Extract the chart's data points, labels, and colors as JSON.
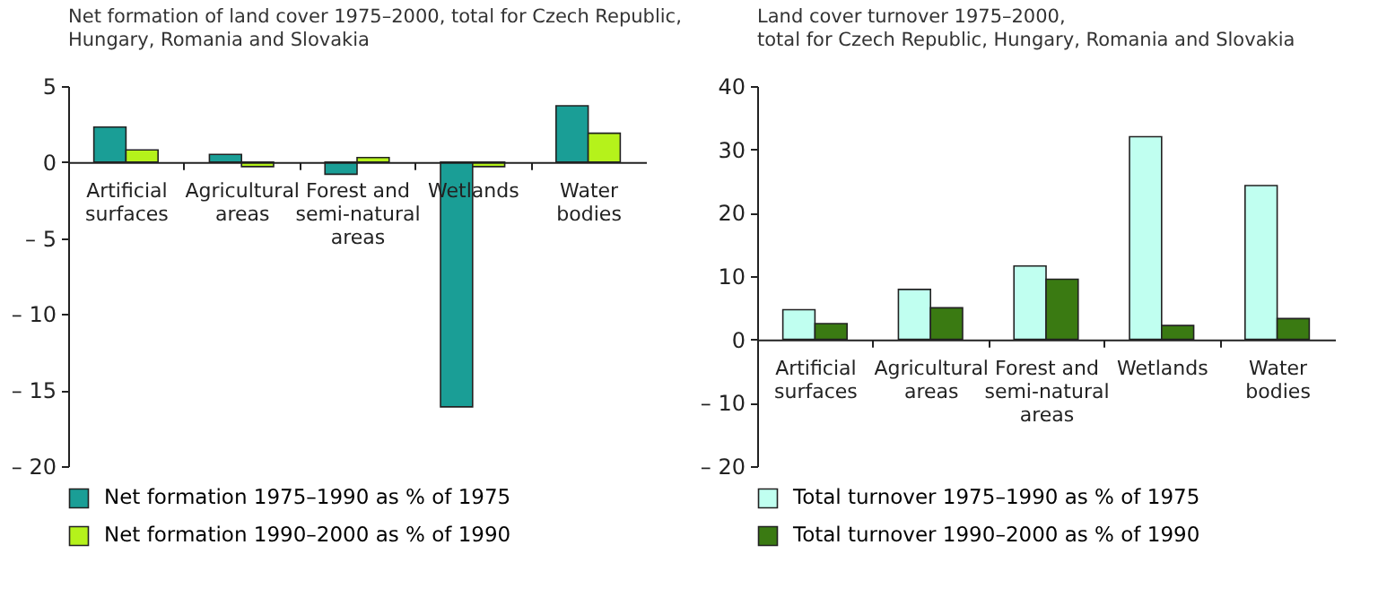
{
  "chart_data": [
    {
      "type": "bar",
      "title": "Net formation of land cover 1975–2000, total for Czech Republic,\nHungary, Romania and Slovakia",
      "categories": [
        "Artificial surfaces",
        "Agricultural areas",
        "Forest and semi-natural areas",
        "Wetlands",
        "Water bodies"
      ],
      "series": [
        {
          "name": "Net formation 1975–1990 as % of 1975",
          "color": "#1a9e96",
          "values": [
            2.3,
            0.5,
            -0.8,
            -16.1,
            3.7
          ]
        },
        {
          "name": "Net formation 1990–2000 as % of 1990",
          "color": "#b5f21b",
          "values": [
            0.8,
            -0.3,
            0.3,
            -0.3,
            1.9
          ]
        }
      ],
      "ylim": [
        -20,
        5
      ],
      "yticks": [
        {
          "value": -20,
          "label": "– 20"
        },
        {
          "value": -15,
          "label": "– 15"
        },
        {
          "value": -10,
          "label": "– 10"
        },
        {
          "value": -5,
          "label": "– 5"
        },
        0,
        5
      ],
      "grid": false,
      "legend": "bottom"
    },
    {
      "type": "bar",
      "title": "Land cover turnover 1975–2000,\ntotal for Czech Republic, Hungary, Romania and Slovakia",
      "categories": [
        "Artificial surfaces",
        "Agricultural areas",
        "Forest and semi-natural areas",
        "Wetlands",
        "Water bodies"
      ],
      "series": [
        {
          "name": "Total turnover 1975–1990 as % of 1975",
          "color": "#c0fff0",
          "values": [
            4.7,
            7.9,
            11.6,
            32,
            24.3
          ]
        },
        {
          "name": "Total turnover 1990–2000 as % of 1990",
          "color": "#3a7a12",
          "values": [
            2.5,
            5,
            9.5,
            2.2,
            3.3
          ]
        }
      ],
      "ylim": [
        -20,
        40
      ],
      "yticks": [
        {
          "value": -20,
          "label": "– 20"
        },
        {
          "value": -10,
          "label": "– 10"
        },
        0,
        10,
        20,
        30,
        40
      ],
      "grid": false,
      "legend": "bottom"
    }
  ]
}
